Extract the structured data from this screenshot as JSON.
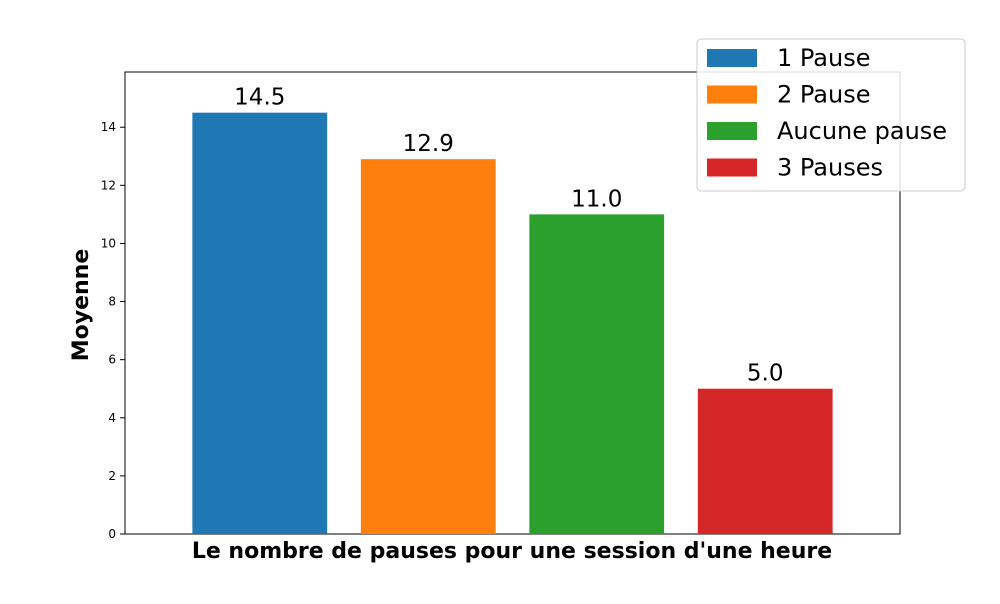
{
  "chart_data": {
    "type": "bar",
    "title": "",
    "xlabel": "Le nombre de pauses pour une session d'une heure",
    "ylabel": "Moyenne",
    "categories": [
      "1 Pause",
      "2 Pause",
      "Aucune pause",
      "3 Pauses"
    ],
    "values": [
      14.5,
      12.9,
      11.0,
      5.0
    ],
    "data_labels": [
      "14.5",
      "12.9",
      "11.0",
      "5.0"
    ],
    "colors": [
      "#1f77b4",
      "#ff7f0e",
      "#2ca02c",
      "#d62728"
    ],
    "ylim": [
      0,
      15.9
    ],
    "yticks": [
      0,
      2,
      4,
      6,
      8,
      10,
      12,
      14
    ],
    "ytick_labels": [
      "0",
      "2",
      "4",
      "6",
      "8",
      "10",
      "12",
      "14"
    ],
    "legend": {
      "placement": "top-right",
      "entries": [
        "1 Pause",
        "2 Pause",
        "Aucune pause",
        "3 Pauses"
      ]
    },
    "grid": false
  }
}
